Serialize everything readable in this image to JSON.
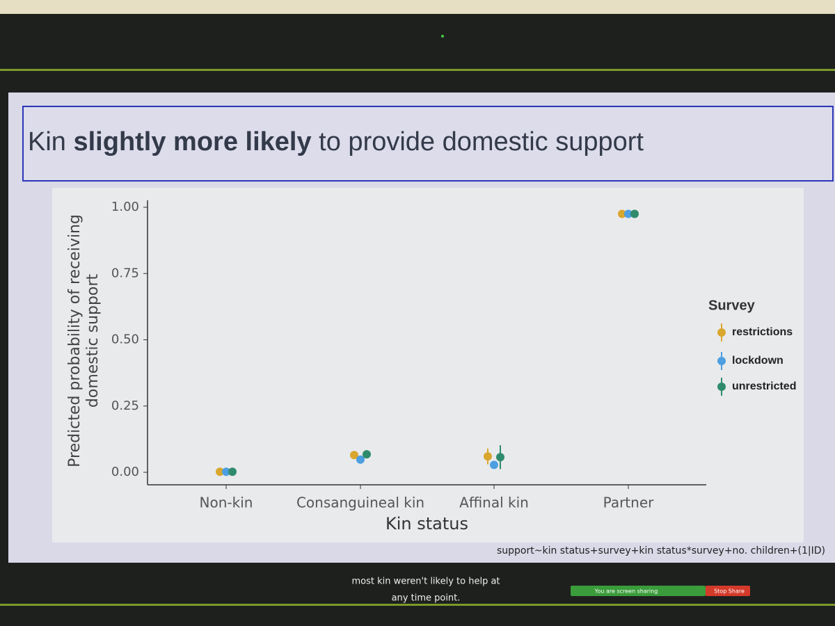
{
  "slide": {
    "title_parts": [
      "Kin ",
      "slightly more likely",
      " to provide domestic support"
    ],
    "footnote": "support~kin status+survey+kin status*survey+no. children+(1|ID)"
  },
  "captions": [
    "most kin weren't likely to help at",
    "any time point."
  ],
  "share_bar": {
    "status": "You are screen sharing",
    "button": "Stop Share"
  },
  "chart_data": {
    "type": "dotplot",
    "x_label": "Kin status",
    "y_label": [
      "Predicted probability of receiving",
      "domestic support"
    ],
    "legend_title": "Survey",
    "categories": [
      "Non-kin",
      "Consanguineal kin",
      "Affinal kin",
      "Partner"
    ],
    "series": [
      {
        "name": "restrictions",
        "color": "#d9a62e",
        "values": [
          0.002,
          0.065,
          0.06,
          0.975
        ],
        "errors": [
          0.003,
          0.01,
          0.03,
          0.005
        ]
      },
      {
        "name": "lockdown",
        "color": "#4d9fe0",
        "values": [
          0.002,
          0.048,
          0.028,
          0.975
        ],
        "errors": [
          0.003,
          0.01,
          0.01,
          0.005
        ]
      },
      {
        "name": "unrestricted",
        "color": "#2f8b6c",
        "values": [
          0.002,
          0.068,
          0.057,
          0.975
        ],
        "errors": [
          0.003,
          0.01,
          0.045,
          0.005
        ]
      }
    ],
    "ylim": [
      0,
      1
    ],
    "yticks": [
      {
        "value": 0,
        "label": "0.00"
      },
      {
        "value": 0.25,
        "label": "0.25"
      },
      {
        "value": 0.5,
        "label": "0.50"
      },
      {
        "value": 0.75,
        "label": "0.75"
      },
      {
        "value": 1,
        "label": "1.00"
      }
    ],
    "legend_position": "right"
  }
}
